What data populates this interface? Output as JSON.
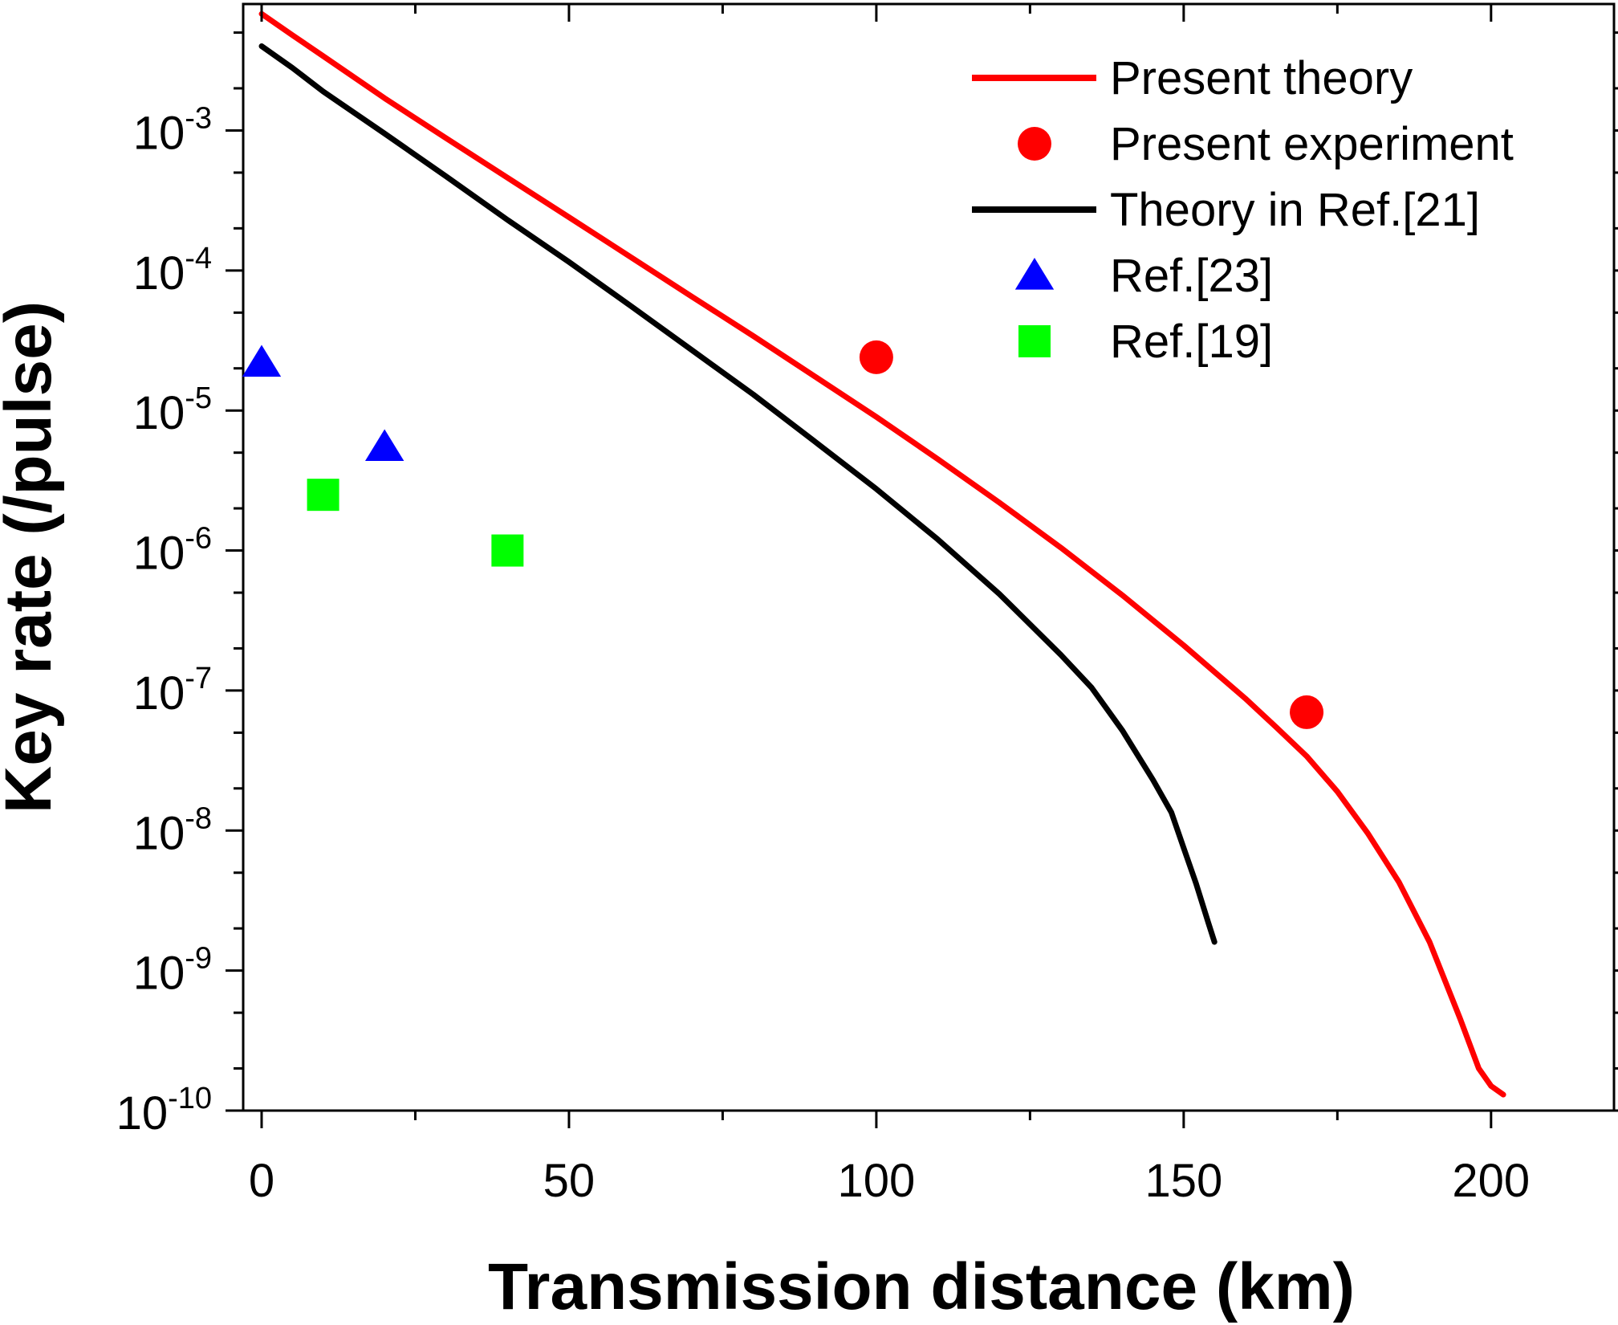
{
  "chart_data": {
    "type": "line",
    "title": "",
    "xlabel": "Transmission distance (km)",
    "ylabel": "Key rate (/pulse)",
    "x_scale": "linear",
    "y_scale": "log",
    "xlim": [
      -3,
      220
    ],
    "ylim": [
      1e-10,
      0.008
    ],
    "x_ticks": [
      0,
      50,
      100,
      150,
      200
    ],
    "x_tick_labels": [
      "0",
      "50",
      "100",
      "150",
      "200"
    ],
    "y_ticks": [
      {
        "value": 1e-10,
        "base": "10",
        "exp": "-10"
      },
      {
        "value": 1e-09,
        "base": "10",
        "exp": "-9"
      },
      {
        "value": 1e-08,
        "base": "10",
        "exp": "-8"
      },
      {
        "value": 1e-07,
        "base": "10",
        "exp": "-7"
      },
      {
        "value": 1e-06,
        "base": "10",
        "exp": "-6"
      },
      {
        "value": 1e-05,
        "base": "10",
        "exp": "-5"
      },
      {
        "value": 0.0001,
        "base": "10",
        "exp": "-4"
      },
      {
        "value": 0.001,
        "base": "10",
        "exp": "-3"
      }
    ],
    "grid": false,
    "legend_position": "top-right",
    "series": [
      {
        "name": "Present theory",
        "kind": "line",
        "color": "#ff0000",
        "points": [
          [
            0,
            0.0068
          ],
          [
            5,
            0.0048
          ],
          [
            10,
            0.0034
          ],
          [
            20,
            0.0017
          ],
          [
            30,
            0.00088
          ],
          [
            40,
            0.00046
          ],
          [
            50,
            0.00024
          ],
          [
            60,
            0.000125
          ],
          [
            70,
            6.5e-05
          ],
          [
            80,
            3.4e-05
          ],
          [
            90,
            1.75e-05
          ],
          [
            100,
            9e-06
          ],
          [
            110,
            4.5e-06
          ],
          [
            120,
            2.2e-06
          ],
          [
            130,
            1.05e-06
          ],
          [
            140,
            4.8e-07
          ],
          [
            150,
            2.1e-07
          ],
          [
            160,
            8.8e-08
          ],
          [
            165,
            5.5e-08
          ],
          [
            170,
            3.4e-08
          ],
          [
            175,
            1.9e-08
          ],
          [
            180,
            9.5e-09
          ],
          [
            185,
            4.3e-09
          ],
          [
            190,
            1.6e-09
          ],
          [
            195,
            4.5e-10
          ],
          [
            198,
            2e-10
          ],
          [
            200,
            1.5e-10
          ],
          [
            202,
            1.3e-10
          ]
        ]
      },
      {
        "name": "Present experiment",
        "kind": "scatter",
        "marker": "circle",
        "color": "#ff0000",
        "points": [
          [
            100,
            2.4e-05
          ],
          [
            170,
            7e-08
          ]
        ]
      },
      {
        "name": "Theory in Ref.[21]",
        "kind": "line",
        "color": "#000000",
        "points": [
          [
            0,
            0.004
          ],
          [
            5,
            0.0028
          ],
          [
            10,
            0.0019
          ],
          [
            20,
            0.00095
          ],
          [
            30,
            0.00047
          ],
          [
            40,
            0.00023
          ],
          [
            50,
            0.000115
          ],
          [
            60,
            5.6e-05
          ],
          [
            70,
            2.7e-05
          ],
          [
            80,
            1.3e-05
          ],
          [
            90,
            6e-06
          ],
          [
            100,
            2.75e-06
          ],
          [
            110,
            1.2e-06
          ],
          [
            120,
            4.9e-07
          ],
          [
            130,
            1.8e-07
          ],
          [
            135,
            1.05e-07
          ],
          [
            140,
            5.2e-08
          ],
          [
            145,
            2.3e-08
          ],
          [
            148,
            1.35e-08
          ],
          [
            150,
            7.5e-09
          ],
          [
            152,
            4.2e-09
          ],
          [
            154,
            2.2e-09
          ],
          [
            155,
            1.6e-09
          ]
        ]
      },
      {
        "name": "Ref.[23]",
        "kind": "scatter",
        "marker": "triangle",
        "color": "#0000ff",
        "points": [
          [
            0,
            2.2e-05
          ],
          [
            20,
            5.5e-06
          ]
        ]
      },
      {
        "name": "Ref.[19]",
        "kind": "scatter",
        "marker": "square",
        "color": "#00ff00",
        "points": [
          [
            10,
            2.5e-06
          ],
          [
            40,
            1e-06
          ]
        ]
      }
    ]
  }
}
